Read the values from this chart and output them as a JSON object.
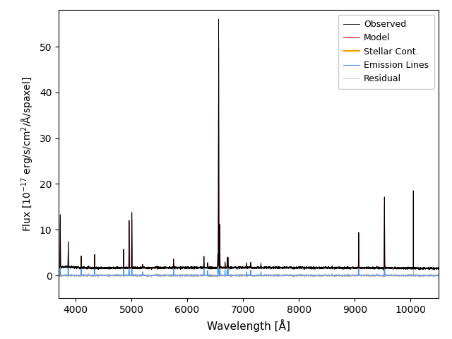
{
  "title": "",
  "xlabel": "Wavelength [Å]",
  "ylabel": "Flux [10$^{-17}$ erg/s/cm$^2$/Å/spaxel]",
  "xlim": [
    3700,
    10500
  ],
  "ylim": [
    -5,
    58
  ],
  "yticks": [
    0,
    10,
    20,
    30,
    40,
    50
  ],
  "xticks": [
    4000,
    5000,
    6000,
    7000,
    8000,
    9000,
    10000
  ],
  "obs_color": "#000000",
  "model_color": "#cc0000",
  "stellar_color": "#ff9900",
  "emission_color": "#4d94ff",
  "residual_color": "#aaaaaa",
  "legend_labels": [
    "Observed",
    "Model",
    "Stellar Cont.",
    "Emission Lines",
    "Residual"
  ],
  "continuum_level": 1.6,
  "wave_start": 3700,
  "wave_end": 10500,
  "n_points": 5000,
  "emission_lines": [
    {
      "wave": 3727,
      "flux_em": 11.5
    },
    {
      "wave": 3870,
      "flux_em": 5.5
    },
    {
      "wave": 4102,
      "flux_em": 2.5
    },
    {
      "wave": 4341,
      "flux_em": 3.0
    },
    {
      "wave": 4862,
      "flux_em": 4.0
    },
    {
      "wave": 4960,
      "flux_em": 10.5
    },
    {
      "wave": 5008,
      "flux_em": 12.5
    },
    {
      "wave": 5200,
      "flux_em": 0.8
    },
    {
      "wave": 5756,
      "flux_em": 2.0
    },
    {
      "wave": 6300,
      "flux_em": 2.5
    },
    {
      "wave": 6365,
      "flux_em": 1.0
    },
    {
      "wave": 6549,
      "flux_em": 3.0
    },
    {
      "wave": 6563,
      "flux_em": 50.5
    },
    {
      "wave": 6584,
      "flux_em": 9.5
    },
    {
      "wave": 6678,
      "flux_em": 1.2
    },
    {
      "wave": 6717,
      "flux_em": 2.2
    },
    {
      "wave": 6731,
      "flux_em": 2.2
    },
    {
      "wave": 7065,
      "flux_em": 0.8
    },
    {
      "wave": 7137,
      "flux_em": 1.2
    },
    {
      "wave": 7321,
      "flux_em": 0.8
    },
    {
      "wave": 9071,
      "flux_em": 8.0
    },
    {
      "wave": 9533,
      "flux_em": 15.5
    },
    {
      "wave": 10050,
      "flux_em": 0.0
    }
  ],
  "obs_extra_lines": [
    {
      "wave": 6563,
      "flux_extra": 5.0
    },
    {
      "wave": 9533,
      "flux_extra": 0.0
    },
    {
      "wave": 10050,
      "flux_extra": 17.0
    }
  ],
  "figsize": [
    6.4,
    4.8
  ],
  "dpi": 100
}
